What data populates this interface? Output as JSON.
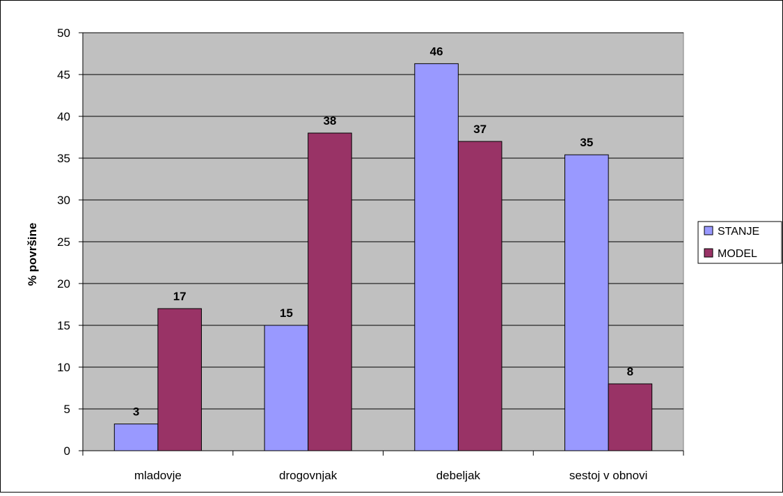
{
  "chart_data": {
    "type": "bar",
    "title": "",
    "xlabel": "",
    "ylabel": "% površine",
    "ylim": [
      0,
      50
    ],
    "yticks": [
      0,
      5,
      10,
      15,
      20,
      25,
      30,
      35,
      40,
      45,
      50
    ],
    "grid": true,
    "legend_position": "right",
    "categories": [
      "mladovje",
      "drogovnjak",
      "debeljak",
      "sestoj v obnovi"
    ],
    "series": [
      {
        "name": "STANJE",
        "color": "#9999ff",
        "values": [
          3.2,
          15,
          46.3,
          35.4
        ],
        "labels": [
          "3",
          "15",
          "46",
          "35"
        ]
      },
      {
        "name": "MODEL",
        "color": "#993366",
        "values": [
          17,
          38,
          37,
          8
        ],
        "labels": [
          "17",
          "38",
          "37",
          "8"
        ]
      }
    ],
    "plot_background": "#c0c0c0"
  }
}
